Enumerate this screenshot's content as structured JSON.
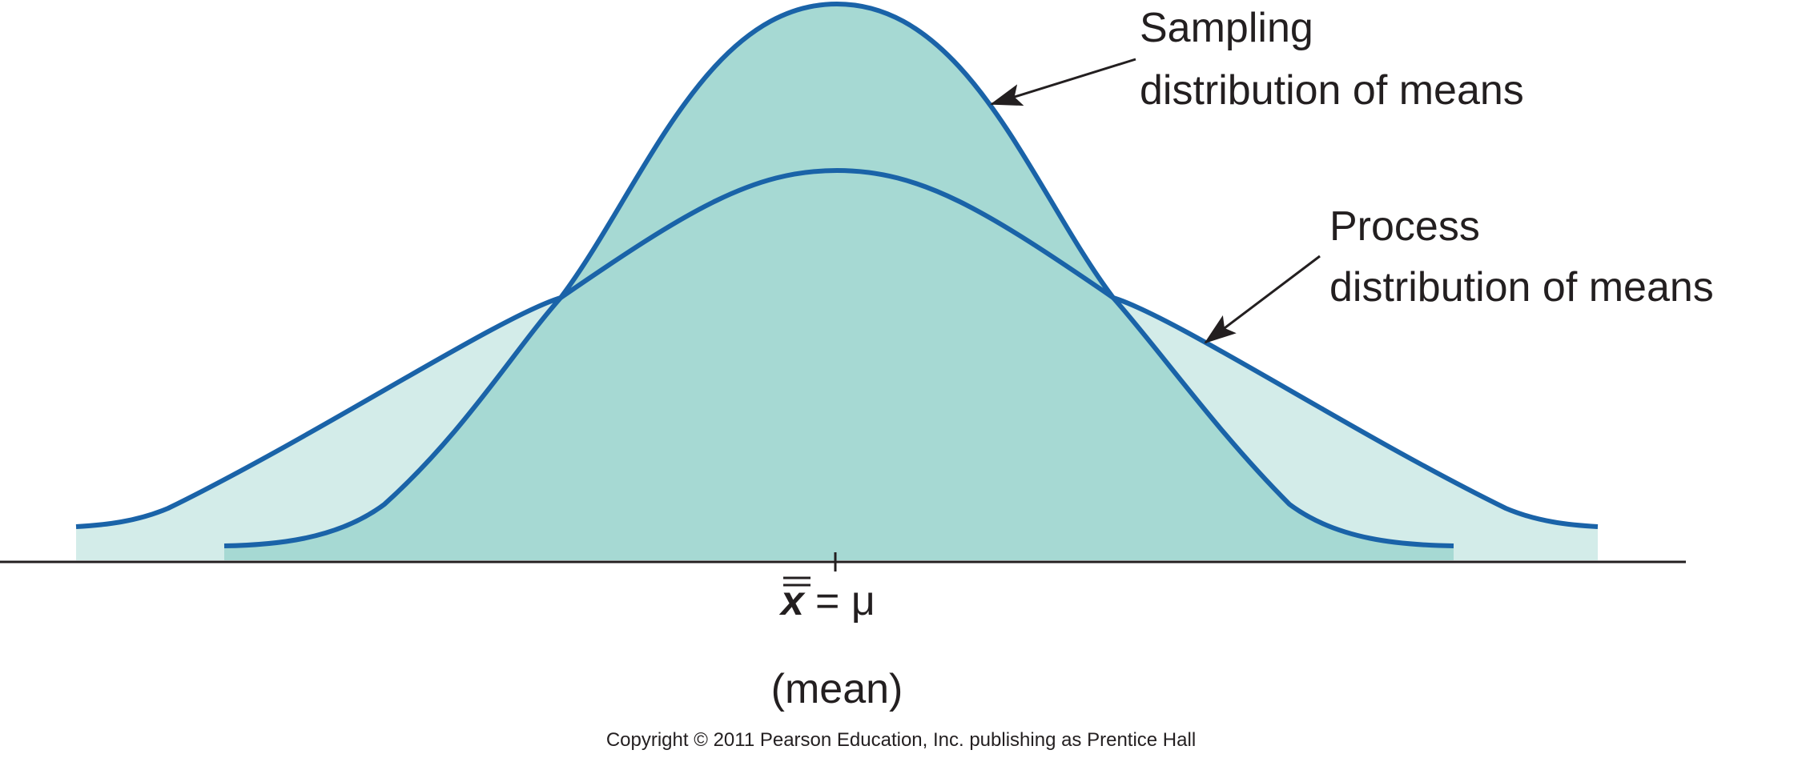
{
  "annotations": {
    "sampling": {
      "line1": "Sampling",
      "line2": "distribution of means"
    },
    "process": {
      "line1": "Process",
      "line2": "distribution of means"
    }
  },
  "axis": {
    "mean_symbol": "x̿",
    "mean_equals": "= μ",
    "mean_label": "(mean)"
  },
  "copyright": "Copyright © 2011 Pearson Education, Inc. publishing as Prentice Hall",
  "colors": {
    "curve_stroke": "#1a63a8",
    "sampling_fill": "#a6d9d3",
    "process_fill": "#d3ece9",
    "axis": "#231f20",
    "text": "#231f20"
  }
}
